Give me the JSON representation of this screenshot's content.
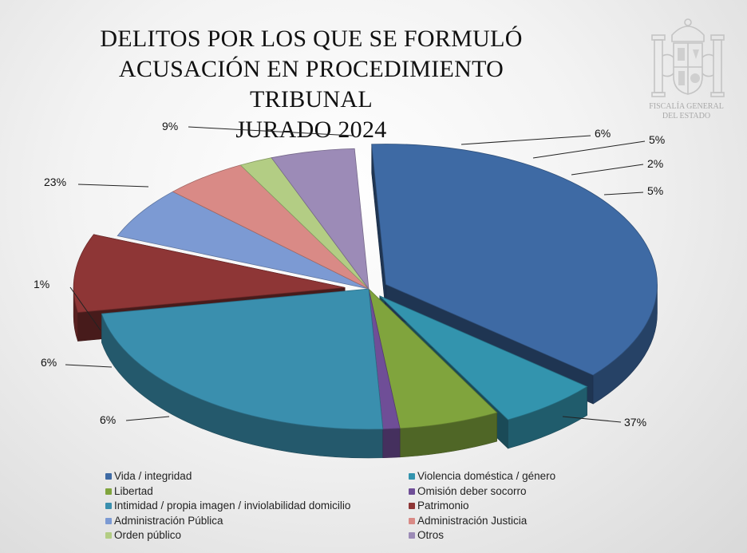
{
  "chart_data": {
    "type": "pie",
    "title": [
      "DELITOS POR LOS QUE SE FORMULÓ",
      "ACUSACIÓN EN PROCEDIMIENTO TRIBUNAL",
      "JURADO 2024"
    ],
    "unit": "%",
    "legend_position": "bottom",
    "slices": [
      {
        "name": "Vida / integridad",
        "value": 37,
        "label": "37%",
        "color": "#3e6aa4"
      },
      {
        "name": "Violencia doméstica / género",
        "value": 6,
        "label": "6%",
        "color": "#3394ae"
      },
      {
        "name": "Libertad",
        "value": 6,
        "label": "6%",
        "color": "#80a43d"
      },
      {
        "name": "Omisión deber socorro",
        "value": 1,
        "label": "1%",
        "color": "#6f4e97"
      },
      {
        "name": "Intimidad / propia imagen / inviolabilidad domicilio",
        "value": 23,
        "label": "23%",
        "color": "#3a8fae"
      },
      {
        "name": "Patrimonio",
        "value": 9,
        "label": "9%",
        "color": "#8e3636"
      },
      {
        "name": "Administración Pública",
        "value": 6,
        "label": "6%",
        "color": "#7c9ad3"
      },
      {
        "name": "Administración Justicia",
        "value": 5,
        "label": "5%",
        "color": "#d98a86"
      },
      {
        "name": "Orden público",
        "value": 2,
        "label": "2%",
        "color": "#b3cd84"
      },
      {
        "name": "Otros",
        "value": 5,
        "label": "5%",
        "color": "#9c8bb7"
      }
    ]
  },
  "emblem": {
    "icon": "coat-of-arms-icon",
    "caption": [
      "FISCALÍA GENERAL",
      "DEL ESTADO"
    ]
  }
}
